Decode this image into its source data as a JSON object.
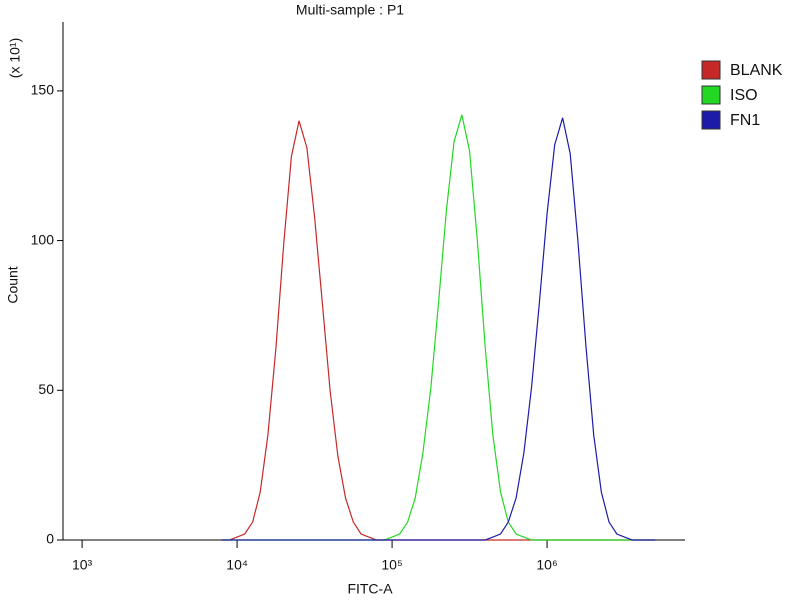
{
  "chart_data": {
    "type": "line",
    "title": "Multi-sample : P1",
    "xlabel": "FITC-A",
    "ylabel": "Count",
    "ylabel_multiplier": "(x 10¹)",
    "xscale": "log",
    "xlim": [
      753,
      7760000
    ],
    "xticks": [
      {
        "value": 1000,
        "label": "10³"
      },
      {
        "value": 10000,
        "label": "10⁴"
      },
      {
        "value": 100000,
        "label": "10⁵"
      },
      {
        "value": 1000000,
        "label": "10⁶"
      }
    ],
    "ylim": [
      0,
      173
    ],
    "yticks": [
      0,
      50,
      100,
      150
    ],
    "grid": false,
    "legend": "upper right",
    "x": [
      7940,
      8910,
      10000,
      11200,
      12600,
      14100,
      15800,
      17800,
      20000,
      22400,
      25100,
      28200,
      31600,
      35500,
      39800,
      44700,
      50100,
      56200,
      63100,
      70800,
      79400,
      89100,
      100000,
      112000,
      126000,
      141000,
      158000,
      178000,
      200000,
      224000,
      251000,
      282000,
      316000,
      355000,
      398000,
      447000,
      501000,
      562000,
      631000,
      708000,
      794000,
      891000,
      1000000,
      1120000,
      1260000,
      1410000,
      1580000,
      1780000,
      2000000,
      2240000,
      2510000,
      2820000,
      3160000,
      3550000,
      3980000,
      4470000,
      5010000
    ],
    "series": [
      {
        "name": "BLANK",
        "color": "#c62828",
        "values": [
          0,
          0,
          1,
          2,
          6,
          16,
          35,
          64,
          99,
          128,
          140,
          131,
          108,
          79,
          50,
          28,
          14,
          6,
          2,
          1,
          0,
          0,
          0,
          0,
          0,
          0,
          0,
          0,
          0,
          0,
          0,
          0,
          0,
          0,
          0,
          0,
          0,
          0,
          0,
          0,
          0,
          0,
          0,
          0,
          0,
          0,
          0,
          0,
          0,
          0,
          0,
          0,
          0,
          0,
          0,
          0,
          0
        ]
      },
      {
        "name": "ISO",
        "color": "#22d822",
        "values": [
          0,
          0,
          0,
          0,
          0,
          0,
          0,
          0,
          0,
          0,
          0,
          0,
          0,
          0,
          0,
          0,
          0,
          0,
          0,
          0,
          0,
          0,
          1,
          2,
          6,
          14,
          29,
          51,
          80,
          110,
          133,
          142,
          130,
          100,
          65,
          35,
          16,
          6,
          2,
          1,
          0,
          0,
          0,
          0,
          0,
          0,
          0,
          0,
          0,
          0,
          0,
          0,
          0,
          0,
          0,
          0,
          0
        ]
      },
      {
        "name": "FN1",
        "color": "#1c1ca8",
        "values": [
          0,
          0,
          0,
          0,
          0,
          0,
          0,
          0,
          0,
          0,
          0,
          0,
          0,
          0,
          0,
          0,
          0,
          0,
          0,
          0,
          0,
          0,
          0,
          0,
          0,
          0,
          0,
          0,
          0,
          0,
          0,
          0,
          0,
          0,
          0,
          1,
          2,
          6,
          14,
          29,
          51,
          79,
          109,
          132,
          141,
          129,
          100,
          65,
          35,
          16,
          6,
          2,
          1,
          0,
          0,
          0,
          0
        ]
      }
    ]
  }
}
